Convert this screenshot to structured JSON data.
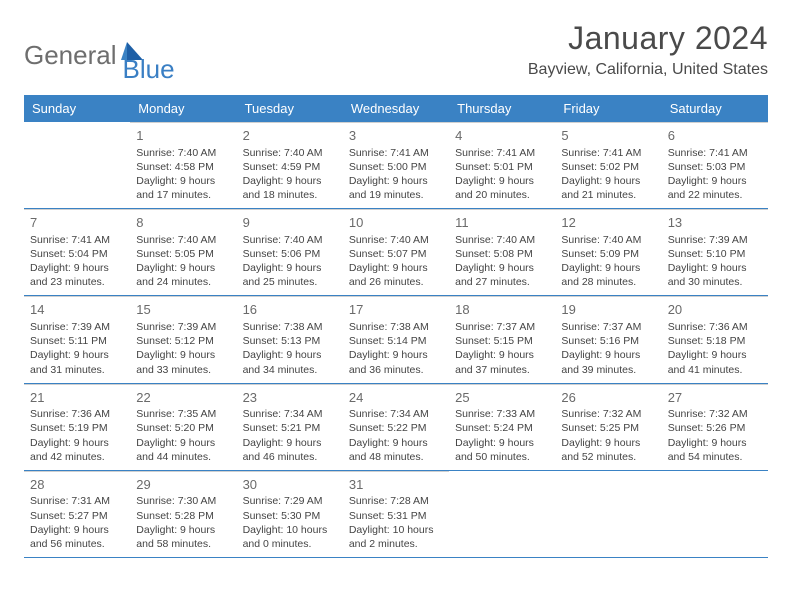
{
  "brand": {
    "part1": "General",
    "part2": "Blue"
  },
  "title": "January 2024",
  "location": "Bayview, California, United States",
  "header_bg": "#3a82c4",
  "header_fg": "#ffffff",
  "divider_color": "#3a82c4",
  "cell_border": "#d0d0d0",
  "weekdays": [
    "Sunday",
    "Monday",
    "Tuesday",
    "Wednesday",
    "Thursday",
    "Friday",
    "Saturday"
  ],
  "weeks": [
    [
      null,
      {
        "n": "1",
        "sunrise": "Sunrise: 7:40 AM",
        "sunset": "Sunset: 4:58 PM",
        "day1": "Daylight: 9 hours",
        "day2": "and 17 minutes."
      },
      {
        "n": "2",
        "sunrise": "Sunrise: 7:40 AM",
        "sunset": "Sunset: 4:59 PM",
        "day1": "Daylight: 9 hours",
        "day2": "and 18 minutes."
      },
      {
        "n": "3",
        "sunrise": "Sunrise: 7:41 AM",
        "sunset": "Sunset: 5:00 PM",
        "day1": "Daylight: 9 hours",
        "day2": "and 19 minutes."
      },
      {
        "n": "4",
        "sunrise": "Sunrise: 7:41 AM",
        "sunset": "Sunset: 5:01 PM",
        "day1": "Daylight: 9 hours",
        "day2": "and 20 minutes."
      },
      {
        "n": "5",
        "sunrise": "Sunrise: 7:41 AM",
        "sunset": "Sunset: 5:02 PM",
        "day1": "Daylight: 9 hours",
        "day2": "and 21 minutes."
      },
      {
        "n": "6",
        "sunrise": "Sunrise: 7:41 AM",
        "sunset": "Sunset: 5:03 PM",
        "day1": "Daylight: 9 hours",
        "day2": "and 22 minutes."
      }
    ],
    [
      {
        "n": "7",
        "sunrise": "Sunrise: 7:41 AM",
        "sunset": "Sunset: 5:04 PM",
        "day1": "Daylight: 9 hours",
        "day2": "and 23 minutes."
      },
      {
        "n": "8",
        "sunrise": "Sunrise: 7:40 AM",
        "sunset": "Sunset: 5:05 PM",
        "day1": "Daylight: 9 hours",
        "day2": "and 24 minutes."
      },
      {
        "n": "9",
        "sunrise": "Sunrise: 7:40 AM",
        "sunset": "Sunset: 5:06 PM",
        "day1": "Daylight: 9 hours",
        "day2": "and 25 minutes."
      },
      {
        "n": "10",
        "sunrise": "Sunrise: 7:40 AM",
        "sunset": "Sunset: 5:07 PM",
        "day1": "Daylight: 9 hours",
        "day2": "and 26 minutes."
      },
      {
        "n": "11",
        "sunrise": "Sunrise: 7:40 AM",
        "sunset": "Sunset: 5:08 PM",
        "day1": "Daylight: 9 hours",
        "day2": "and 27 minutes."
      },
      {
        "n": "12",
        "sunrise": "Sunrise: 7:40 AM",
        "sunset": "Sunset: 5:09 PM",
        "day1": "Daylight: 9 hours",
        "day2": "and 28 minutes."
      },
      {
        "n": "13",
        "sunrise": "Sunrise: 7:39 AM",
        "sunset": "Sunset: 5:10 PM",
        "day1": "Daylight: 9 hours",
        "day2": "and 30 minutes."
      }
    ],
    [
      {
        "n": "14",
        "sunrise": "Sunrise: 7:39 AM",
        "sunset": "Sunset: 5:11 PM",
        "day1": "Daylight: 9 hours",
        "day2": "and 31 minutes."
      },
      {
        "n": "15",
        "sunrise": "Sunrise: 7:39 AM",
        "sunset": "Sunset: 5:12 PM",
        "day1": "Daylight: 9 hours",
        "day2": "and 33 minutes."
      },
      {
        "n": "16",
        "sunrise": "Sunrise: 7:38 AM",
        "sunset": "Sunset: 5:13 PM",
        "day1": "Daylight: 9 hours",
        "day2": "and 34 minutes."
      },
      {
        "n": "17",
        "sunrise": "Sunrise: 7:38 AM",
        "sunset": "Sunset: 5:14 PM",
        "day1": "Daylight: 9 hours",
        "day2": "and 36 minutes."
      },
      {
        "n": "18",
        "sunrise": "Sunrise: 7:37 AM",
        "sunset": "Sunset: 5:15 PM",
        "day1": "Daylight: 9 hours",
        "day2": "and 37 minutes."
      },
      {
        "n": "19",
        "sunrise": "Sunrise: 7:37 AM",
        "sunset": "Sunset: 5:16 PM",
        "day1": "Daylight: 9 hours",
        "day2": "and 39 minutes."
      },
      {
        "n": "20",
        "sunrise": "Sunrise: 7:36 AM",
        "sunset": "Sunset: 5:18 PM",
        "day1": "Daylight: 9 hours",
        "day2": "and 41 minutes."
      }
    ],
    [
      {
        "n": "21",
        "sunrise": "Sunrise: 7:36 AM",
        "sunset": "Sunset: 5:19 PM",
        "day1": "Daylight: 9 hours",
        "day2": "and 42 minutes."
      },
      {
        "n": "22",
        "sunrise": "Sunrise: 7:35 AM",
        "sunset": "Sunset: 5:20 PM",
        "day1": "Daylight: 9 hours",
        "day2": "and 44 minutes."
      },
      {
        "n": "23",
        "sunrise": "Sunrise: 7:34 AM",
        "sunset": "Sunset: 5:21 PM",
        "day1": "Daylight: 9 hours",
        "day2": "and 46 minutes."
      },
      {
        "n": "24",
        "sunrise": "Sunrise: 7:34 AM",
        "sunset": "Sunset: 5:22 PM",
        "day1": "Daylight: 9 hours",
        "day2": "and 48 minutes."
      },
      {
        "n": "25",
        "sunrise": "Sunrise: 7:33 AM",
        "sunset": "Sunset: 5:24 PM",
        "day1": "Daylight: 9 hours",
        "day2": "and 50 minutes."
      },
      {
        "n": "26",
        "sunrise": "Sunrise: 7:32 AM",
        "sunset": "Sunset: 5:25 PM",
        "day1": "Daylight: 9 hours",
        "day2": "and 52 minutes."
      },
      {
        "n": "27",
        "sunrise": "Sunrise: 7:32 AM",
        "sunset": "Sunset: 5:26 PM",
        "day1": "Daylight: 9 hours",
        "day2": "and 54 minutes."
      }
    ],
    [
      {
        "n": "28",
        "sunrise": "Sunrise: 7:31 AM",
        "sunset": "Sunset: 5:27 PM",
        "day1": "Daylight: 9 hours",
        "day2": "and 56 minutes."
      },
      {
        "n": "29",
        "sunrise": "Sunrise: 7:30 AM",
        "sunset": "Sunset: 5:28 PM",
        "day1": "Daylight: 9 hours",
        "day2": "and 58 minutes."
      },
      {
        "n": "30",
        "sunrise": "Sunrise: 7:29 AM",
        "sunset": "Sunset: 5:30 PM",
        "day1": "Daylight: 10 hours",
        "day2": "and 0 minutes."
      },
      {
        "n": "31",
        "sunrise": "Sunrise: 7:28 AM",
        "sunset": "Sunset: 5:31 PM",
        "day1": "Daylight: 10 hours",
        "day2": "and 2 minutes."
      },
      null,
      null,
      null
    ]
  ]
}
